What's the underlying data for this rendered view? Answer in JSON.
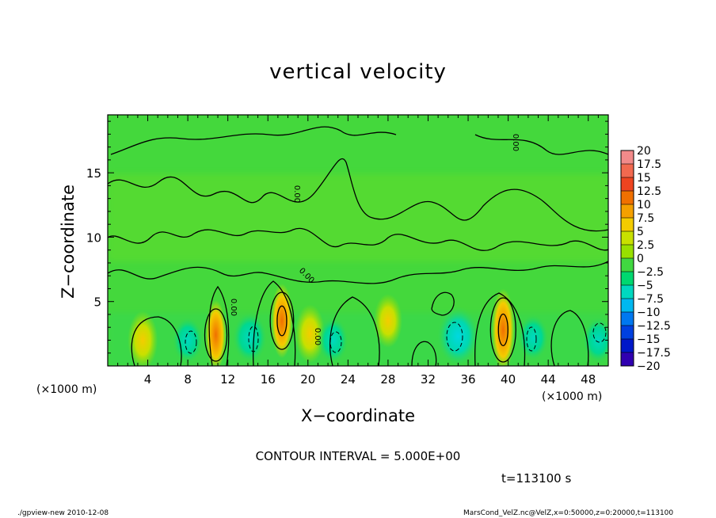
{
  "chart_data": {
    "type": "heatmap",
    "title": "vertical velocity",
    "xlabel": "X−coordinate",
    "ylabel": "Z−coordinate",
    "x_unit_label": "(×1000 m)",
    "xlim": [
      0,
      50
    ],
    "ylim": [
      0,
      19.5
    ],
    "x_ticks": [
      4,
      8,
      12,
      16,
      20,
      24,
      28,
      32,
      36,
      40,
      44,
      48
    ],
    "y_ticks": [
      5,
      10,
      15
    ],
    "contour_interval_text": "CONTOUR INTERVAL = 5.000E+00",
    "time_text": "t=113100 s",
    "contour_labels": [
      "0.00",
      "0.00",
      "0.00",
      "0.00",
      "0.00"
    ],
    "colorbar": {
      "levels": [
        20,
        17.5,
        15,
        12.5,
        10,
        7.5,
        5,
        2.5,
        0,
        -2.5,
        -5,
        -7.5,
        -10,
        -12.5,
        -15,
        -17.5,
        -20
      ],
      "colors": [
        "#f28a8a",
        "#f2694f",
        "#ee4420",
        "#f07000",
        "#f4a000",
        "#f4cc00",
        "#c8e000",
        "#98e000",
        "#40d840",
        "#00d870",
        "#00d8c0",
        "#00b8f0",
        "#0078f0",
        "#0040e0",
        "#0018c8",
        "#3000b0",
        "#7010b0"
      ]
    },
    "features": [
      {
        "kind": "positive-max",
        "x": 10.8,
        "z": 2.4,
        "value": 10
      },
      {
        "kind": "positive-max",
        "x": 17.4,
        "z": 3.5,
        "value": 12
      },
      {
        "kind": "positive-max",
        "x": 39.5,
        "z": 2.8,
        "value": 15
      },
      {
        "kind": "positive",
        "x": 3.5,
        "z": 2.0,
        "value": 5
      },
      {
        "kind": "positive",
        "x": 20.2,
        "z": 2.5,
        "value": 5
      },
      {
        "kind": "positive",
        "x": 28.0,
        "z": 3.5,
        "value": 4
      },
      {
        "kind": "negative",
        "x": 8.0,
        "z": 2.0,
        "value": -4
      },
      {
        "kind": "negative",
        "x": 14.2,
        "z": 2.2,
        "value": -5
      },
      {
        "kind": "negative",
        "x": 22.5,
        "z": 2.0,
        "value": -4
      },
      {
        "kind": "negative",
        "x": 35.0,
        "z": 2.3,
        "value": -7
      },
      {
        "kind": "negative",
        "x": 42.5,
        "z": 2.2,
        "value": -4
      },
      {
        "kind": "negative",
        "x": 49.0,
        "z": 2.0,
        "value": -4
      }
    ]
  },
  "footer": {
    "left": "./gpview-new  2010-12-08",
    "right": "MarsCond_VelZ.nc@VelZ,x=0:50000,z=0:20000,t=113100"
  }
}
